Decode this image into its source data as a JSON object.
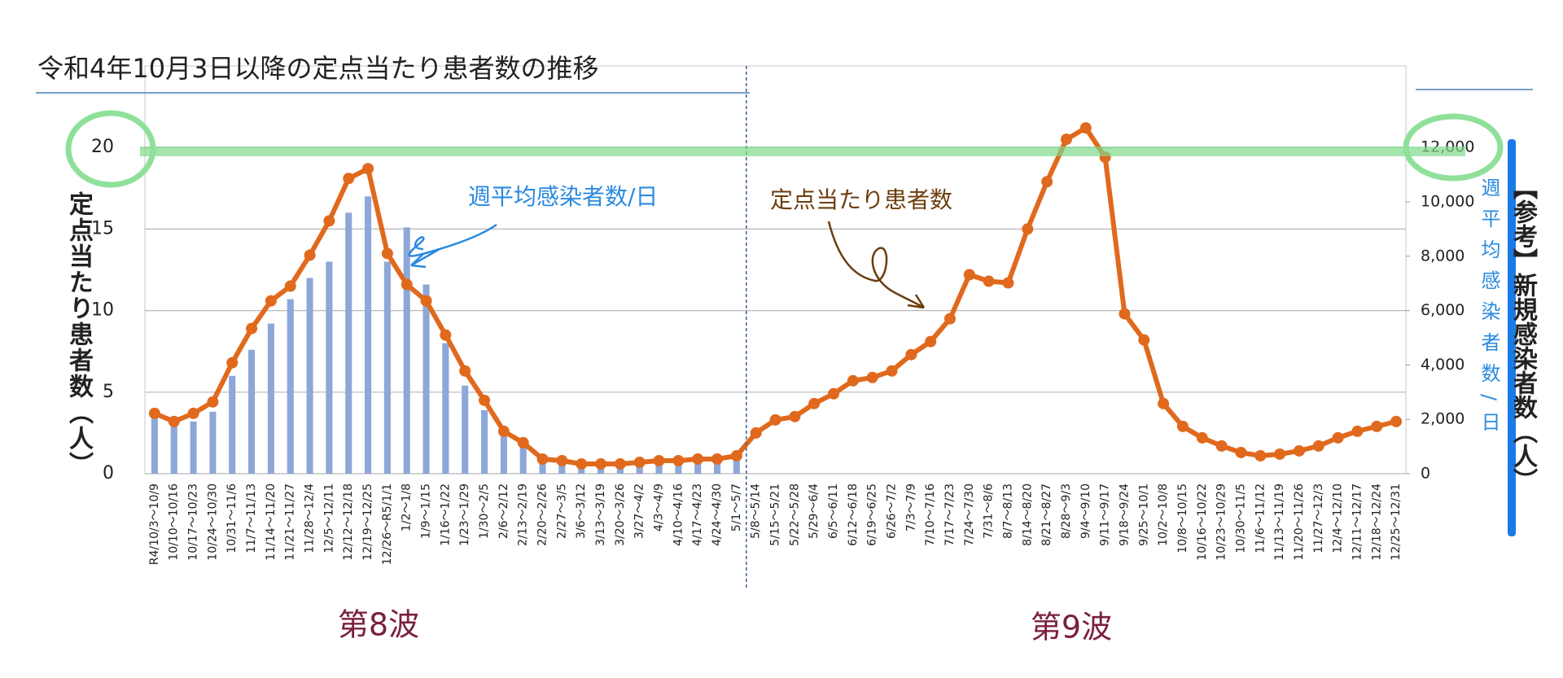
{
  "chart_data": {
    "type": "combo",
    "title": "令和4年10月3日以降の定点当たり患者数の推移",
    "ylabel": "定点当たり患者数（人）",
    "y2label": "【参考】新規感染者数（人）",
    "annotations": [
      "第8波",
      "第9波"
    ],
    "categories": [
      "R4/10/3～10/9",
      "10/10～10/16",
      "10/17～10/23",
      "10/24～10/30",
      "10/31～11/6",
      "11/7～11/13",
      "11/14～11/20",
      "11/21～11/27",
      "11/28～12/4",
      "12/5～12/11",
      "12/12～12/18",
      "12/19～12/25",
      "12/26～R5/1/1",
      "1/2～1/8",
      "1/9～1/15",
      "1/16～1/22",
      "1/23～1/29",
      "1/30～2/5",
      "2/6～2/12",
      "2/13～2/19",
      "2/20～2/26",
      "2/27～3/5",
      "3/6～3/12",
      "3/13～3/19",
      "3/20～3/26",
      "3/27～4/2",
      "4/3～4/9",
      "4/10～4/16",
      "4/17～4/23",
      "4/24～4/30",
      "5/1～5/7",
      "5/8～5/14",
      "5/15～5/21",
      "5/22～5/28",
      "5/29～6/4",
      "6/5～6/11",
      "6/12～6/18",
      "6/19～6/25",
      "6/26～7/2",
      "7/3～7/9",
      "7/10～7/16",
      "7/17～7/23",
      "7/24～7/30",
      "7/31～8/6",
      "8/7～8/13",
      "8/14～8/20",
      "8/21～8/27",
      "8/28～9/3",
      "9/4～9/10",
      "9/11～9/17",
      "9/18～9/24",
      "9/25～10/1",
      "10/2～10/8",
      "10/8～10/15",
      "10/16～10/22",
      "10/23～10/29",
      "10/30～11/5",
      "11/6～11/12",
      "11/13～11/19",
      "11/20～11/26",
      "11/27～12/3",
      "12/4～12/10",
      "12/11～12/17",
      "12/18～12/24",
      "12/25～12/31"
    ],
    "series": [
      {
        "name": "週平均感染者数/日",
        "type": "bar",
        "axis": "y2",
        "color": "#8ea7d9",
        "values": [
          2400,
          1860,
          1920,
          2280,
          3600,
          4560,
          5520,
          6420,
          7200,
          7800,
          9600,
          10200,
          7800,
          9060,
          6960,
          4800,
          3240,
          2340,
          1500,
          1080,
          480,
          420,
          360,
          360,
          360,
          420,
          480,
          480,
          540,
          540,
          600,
          null,
          null,
          null,
          null,
          null,
          null,
          null,
          null,
          null,
          null,
          null,
          null,
          null,
          null,
          null,
          null,
          null,
          null,
          null,
          null,
          null,
          null,
          null,
          null,
          null,
          null,
          null,
          null,
          null,
          null,
          null,
          null,
          null,
          null
        ]
      },
      {
        "name": "定点当たり患者数",
        "type": "line",
        "axis": "y",
        "color": "#e0691d",
        "values": [
          3.7,
          3.2,
          3.7,
          4.4,
          6.8,
          8.9,
          10.6,
          11.5,
          13.4,
          15.5,
          18.1,
          18.7,
          13.5,
          11.6,
          10.6,
          8.5,
          6.3,
          4.5,
          2.6,
          1.9,
          0.9,
          0.8,
          0.6,
          0.6,
          0.6,
          0.7,
          0.8,
          0.8,
          0.9,
          0.9,
          1.1,
          2.5,
          3.3,
          3.5,
          4.3,
          4.9,
          5.7,
          5.9,
          6.3,
          7.3,
          8.1,
          9.5,
          12.2,
          11.8,
          11.7,
          15.0,
          17.9,
          20.5,
          21.2,
          19.4,
          9.8,
          8.2,
          4.3,
          2.9,
          2.2,
          1.7,
          1.3,
          1.1,
          1.2,
          1.4,
          1.7,
          2.2,
          2.6,
          2.9,
          3.2
        ]
      }
    ],
    "ylim": [
      0,
      25
    ],
    "yticks": [
      0,
      5,
      10,
      15,
      20
    ],
    "y2lim": [
      0,
      15000
    ],
    "y2ticks": [
      0,
      {
        "value": 2000,
        "label": "2,000"
      },
      {
        "value": 4000,
        "label": "4,000"
      },
      {
        "value": 6000,
        "label": "6,000"
      },
      {
        "value": 8000,
        "label": "8,000"
      },
      {
        "value": 10000,
        "label": "10,000"
      },
      {
        "value": 12000,
        "label": "12,000"
      }
    ],
    "grid": true
  }
}
